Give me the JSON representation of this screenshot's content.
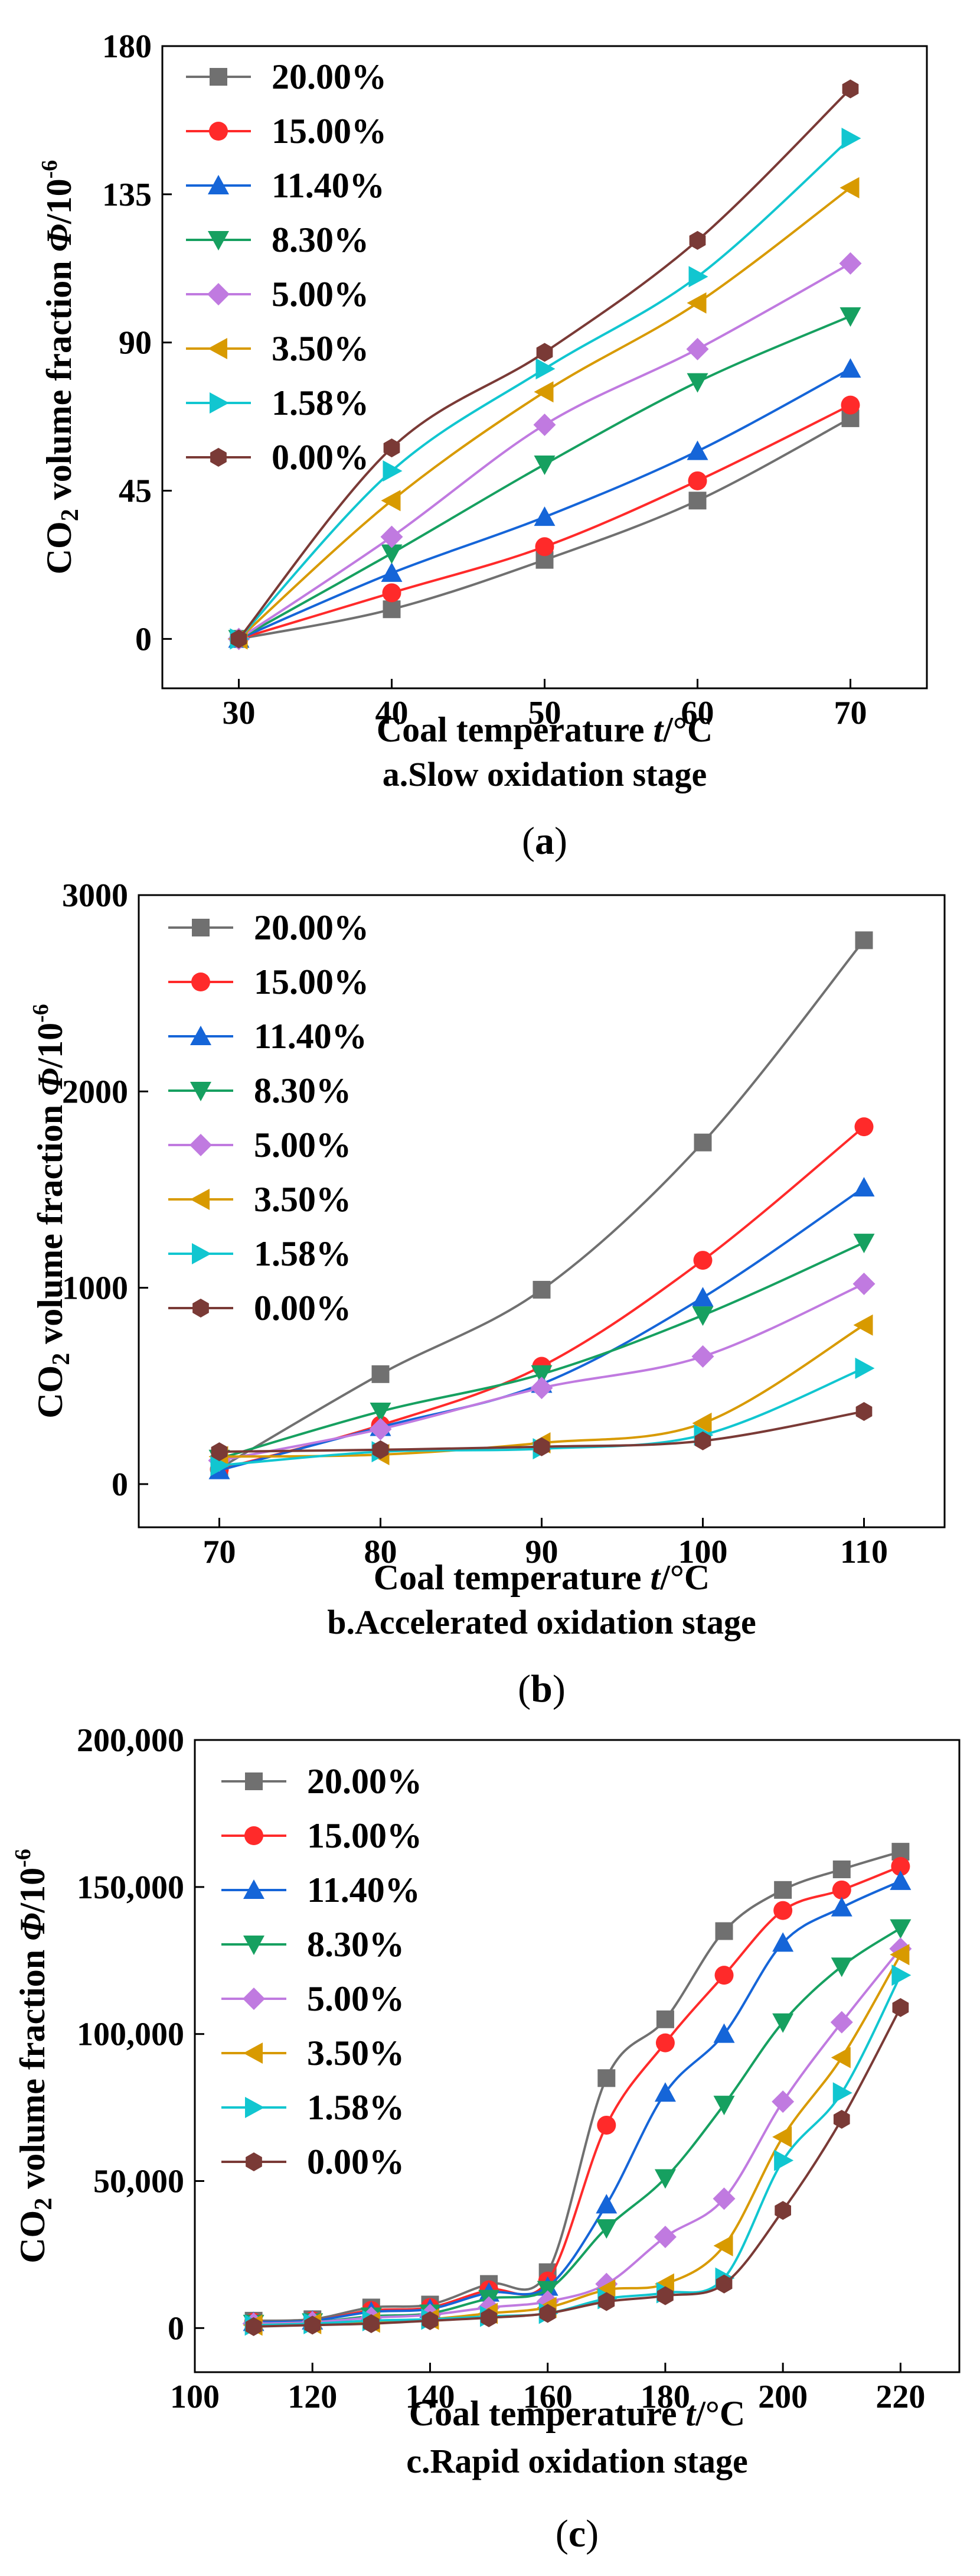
{
  "series_colors": [
    "#707070",
    "#ff2a2a",
    "#1565d8",
    "#16a060",
    "#c07ae0",
    "#d89a00",
    "#11c6d0",
    "#7a3a36"
  ],
  "series_markers": [
    "square",
    "circle",
    "triangle-up",
    "triangle-down",
    "diamond",
    "triangle-left",
    "triangle-right",
    "hexagon"
  ],
  "chart_data": [
    {
      "type": "line",
      "panel_label": "(a)",
      "caption": "a.Slow oxidation stage",
      "xlabel": "Coal temperature t/°C",
      "ylabel": "CO2 volume fraction Φ/10-6",
      "xlabel_parts": {
        "pre": "Coal temperature ",
        "var": "t",
        "post": "/°C"
      },
      "ylabel_parts": {
        "pre": "CO",
        "sub": "2",
        "mid": " volume fraction ",
        "var": "Φ",
        "unit": "/10",
        "sup": "-6"
      },
      "xlim": [
        25,
        75
      ],
      "ylim": [
        -15,
        180
      ],
      "xticks": [
        30,
        40,
        50,
        60,
        70
      ],
      "yticks": [
        0,
        45,
        90,
        135,
        180
      ],
      "xtick_labels": [
        "30",
        "40",
        "50",
        "60",
        "70"
      ],
      "ytick_labels": [
        "0",
        "45",
        "90",
        "135",
        "180"
      ],
      "x": [
        30,
        40,
        50,
        60,
        70
      ],
      "legend_position": "top-left",
      "series": [
        {
          "name": "20.00%",
          "values": [
            0,
            9,
            24,
            42,
            67
          ]
        },
        {
          "name": "15.00%",
          "values": [
            0,
            14,
            28,
            48,
            71
          ]
        },
        {
          "name": "11.40%",
          "values": [
            0,
            20,
            37,
            57,
            82
          ]
        },
        {
          "name": "8.30%",
          "values": [
            0,
            26,
            53,
            78,
            98
          ]
        },
        {
          "name": "5.00%",
          "values": [
            0,
            31,
            65,
            88,
            114
          ]
        },
        {
          "name": "3.50%",
          "values": [
            0,
            42,
            75,
            102,
            137
          ]
        },
        {
          "name": "1.58%",
          "values": [
            0,
            51,
            82,
            110,
            152
          ]
        },
        {
          "name": "0.00%",
          "values": [
            0,
            58,
            87,
            121,
            167
          ]
        }
      ]
    },
    {
      "type": "line",
      "panel_label": "(b)",
      "caption": "b.Accelerated oxidation stage",
      "xlabel": "Coal temperature t/°C",
      "ylabel": "CO2 volume fraction Φ/10-6",
      "xlabel_parts": {
        "pre": "Coal temperature ",
        "var": "t",
        "post": "/°C"
      },
      "ylabel_parts": {
        "pre": "CO",
        "sub": "2",
        "mid": " volume fraction ",
        "var": "Φ",
        "unit": "/10",
        "sup": "-6"
      },
      "xlim": [
        65,
        115
      ],
      "ylim": [
        -220,
        3000
      ],
      "xticks": [
        70,
        80,
        90,
        100,
        110
      ],
      "yticks": [
        0,
        1000,
        2000,
        3000
      ],
      "xtick_labels": [
        "70",
        "80",
        "90",
        "100",
        "110"
      ],
      "ytick_labels": [
        "0",
        "1000",
        "2000",
        "3000"
      ],
      "x": [
        70,
        80,
        90,
        100,
        110
      ],
      "legend_position": "top-left",
      "series": [
        {
          "name": "20.00%",
          "values": [
            80,
            560,
            990,
            1740,
            2770
          ]
        },
        {
          "name": "15.00%",
          "values": [
            75,
            300,
            600,
            1140,
            1820
          ]
        },
        {
          "name": "11.40%",
          "values": [
            70,
            290,
            510,
            950,
            1510
          ]
        },
        {
          "name": "8.30%",
          "values": [
            130,
            370,
            560,
            860,
            1230
          ]
        },
        {
          "name": "5.00%",
          "values": [
            120,
            280,
            490,
            650,
            1020
          ]
        },
        {
          "name": "3.50%",
          "values": [
            140,
            150,
            210,
            310,
            810
          ]
        },
        {
          "name": "1.58%",
          "values": [
            95,
            165,
            180,
            250,
            590
          ]
        },
        {
          "name": "0.00%",
          "values": [
            165,
            175,
            190,
            220,
            370
          ]
        }
      ]
    },
    {
      "type": "line",
      "panel_label": "(c)",
      "caption": "c.Rapid oxidation stage",
      "xlabel": "Coal temperature t/°C",
      "ylabel": "CO2 volume fraction Φ/10-6",
      "xlabel_parts": {
        "pre": "Coal temperature ",
        "var": "t",
        "post": "/°C"
      },
      "ylabel_parts": {
        "pre": "CO",
        "sub": "2",
        "mid": " volume fraction ",
        "var": "Φ",
        "unit": "/10",
        "sup": "-6"
      },
      "xlim": [
        100,
        230
      ],
      "ylim": [
        -15000,
        200000
      ],
      "xticks": [
        100,
        120,
        140,
        160,
        180,
        200,
        220
      ],
      "yticks": [
        0,
        50000,
        100000,
        150000,
        200000
      ],
      "xtick_labels": [
        "100",
        "120",
        "140",
        "160",
        "180",
        "200",
        "220"
      ],
      "ytick_labels": [
        "0",
        "50,000",
        "100,000",
        "150,000",
        "200,000"
      ],
      "x": [
        110,
        120,
        130,
        140,
        150,
        160,
        170,
        180,
        190,
        200,
        210,
        220
      ],
      "legend_position": "top-left",
      "series": [
        {
          "name": "20.00%",
          "values": [
            2500,
            3000,
            7000,
            8000,
            15000,
            19000,
            85000,
            105000,
            135000,
            149000,
            156000,
            162000
          ]
        },
        {
          "name": "15.00%",
          "values": [
            2000,
            2500,
            6000,
            7000,
            13000,
            16000,
            69000,
            97000,
            120000,
            142000,
            149000,
            157000
          ]
        },
        {
          "name": "11.40%",
          "values": [
            2000,
            2500,
            5500,
            6500,
            12000,
            14000,
            42000,
            80000,
            100000,
            131000,
            143000,
            152000
          ]
        },
        {
          "name": "8.30%",
          "values": [
            1500,
            2000,
            4000,
            5000,
            10000,
            13000,
            34000,
            51000,
            76000,
            104000,
            123000,
            136000
          ]
        },
        {
          "name": "5.00%",
          "values": [
            1500,
            2000,
            3500,
            4500,
            7000,
            9000,
            15000,
            31000,
            44000,
            77000,
            104000,
            129000
          ]
        },
        {
          "name": "3.50%",
          "values": [
            1000,
            1500,
            2000,
            3000,
            5000,
            7000,
            13000,
            15000,
            28000,
            65000,
            92000,
            127000
          ]
        },
        {
          "name": "1.58%",
          "values": [
            1000,
            1500,
            2500,
            3000,
            4000,
            5000,
            10000,
            12000,
            17000,
            57000,
            80000,
            120000
          ]
        },
        {
          "name": "0.00%",
          "values": [
            500,
            1000,
            1500,
            2500,
            3500,
            5000,
            9000,
            11000,
            15000,
            40000,
            71000,
            109000
          ]
        }
      ]
    }
  ]
}
